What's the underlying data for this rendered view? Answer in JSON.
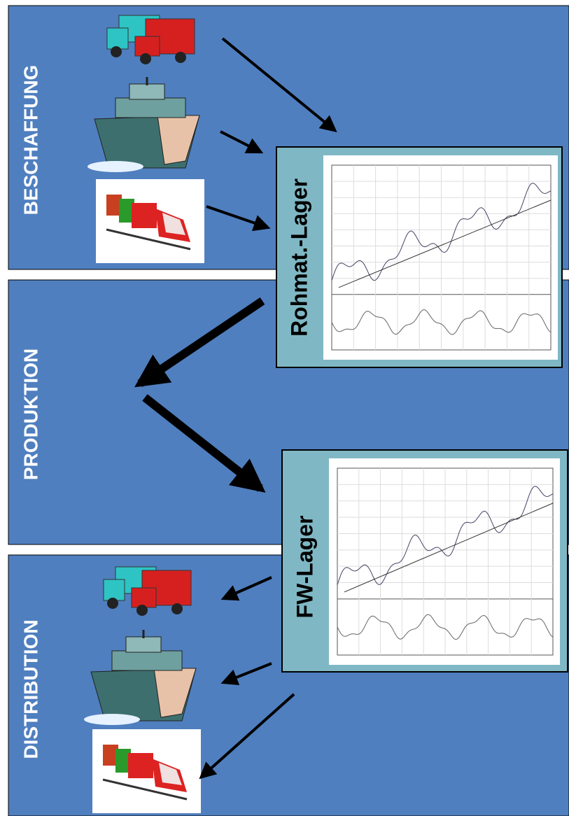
{
  "sections": {
    "procurement": "BESCHAFFUNG",
    "production": "PRODUKTION",
    "distribution": "DISTRIBUTION"
  },
  "stores": {
    "raw_material": "Rohmat.-Lager",
    "finished_goods": "FW-Lager"
  }
}
